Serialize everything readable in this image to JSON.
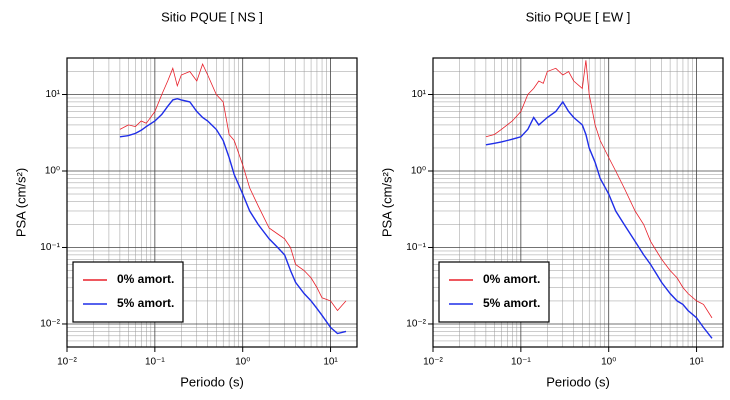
{
  "chart_data": [
    {
      "type": "line",
      "title": "Sitio PQUE [ NS ]",
      "x_label": "Periodo (s)",
      "y_label": "PSA (cm/s²)",
      "log_x": true,
      "log_y": true,
      "grid": true,
      "minor_grid": true,
      "legend": "lower left",
      "xlim": [
        0.01,
        20
      ],
      "ylim": [
        0.005,
        30
      ],
      "xticks": [
        {
          "value": 0.01,
          "label": "10⁻²"
        },
        {
          "value": 0.1,
          "label": "10⁻¹"
        },
        {
          "value": 1,
          "label": "10⁰"
        },
        {
          "value": 10,
          "label": "10¹"
        }
      ],
      "yticks": [
        {
          "value": 0.01,
          "label": "10⁻²"
        },
        {
          "value": 0.1,
          "label": "10⁻¹"
        },
        {
          "value": 1,
          "label": "10⁰"
        },
        {
          "value": 10,
          "label": "10¹"
        }
      ],
      "x": [
        0.04,
        0.05,
        0.06,
        0.07,
        0.08,
        0.1,
        0.12,
        0.14,
        0.16,
        0.18,
        0.2,
        0.25,
        0.3,
        0.35,
        0.4,
        0.5,
        0.6,
        0.7,
        0.8,
        1.0,
        1.2,
        1.5,
        2,
        2.5,
        3,
        3.5,
        4,
        5,
        6,
        7,
        8,
        10,
        12,
        15
      ],
      "series": [
        {
          "name": "0% amort.",
          "color": "#e8202a",
          "width": 0.8,
          "values": [
            3.5,
            4,
            3.8,
            4.5,
            4.2,
            6,
            10,
            15,
            22,
            13,
            18,
            20,
            15,
            25,
            18,
            10,
            8,
            3,
            2.5,
            1.2,
            0.6,
            0.35,
            0.18,
            0.15,
            0.13,
            0.1,
            0.06,
            0.05,
            0.04,
            0.03,
            0.022,
            0.02,
            0.015,
            0.02
          ]
        },
        {
          "name": "5% amort.",
          "color": "#1f2ee8",
          "width": 1.4,
          "values": [
            2.8,
            2.9,
            3.1,
            3.4,
            3.8,
            4.5,
            5.5,
            7,
            8.5,
            8.8,
            8.5,
            8,
            6,
            5,
            4.5,
            3.5,
            2.5,
            1.5,
            0.9,
            0.5,
            0.3,
            0.2,
            0.13,
            0.1,
            0.08,
            0.05,
            0.035,
            0.025,
            0.02,
            0.016,
            0.013,
            0.009,
            0.0075,
            0.008
          ]
        }
      ]
    },
    {
      "type": "line",
      "title": "Sitio PQUE [ EW ]",
      "x_label": "Periodo (s)",
      "y_label": "PSA (cm/s²)",
      "log_x": true,
      "log_y": true,
      "grid": true,
      "minor_grid": true,
      "legend": "lower left",
      "xlim": [
        0.01,
        20
      ],
      "ylim": [
        0.005,
        30
      ],
      "xticks": [
        {
          "value": 0.01,
          "label": "10⁻²"
        },
        {
          "value": 0.1,
          "label": "10⁻¹"
        },
        {
          "value": 1,
          "label": "10⁰"
        },
        {
          "value": 10,
          "label": "10¹"
        }
      ],
      "yticks": [
        {
          "value": 0.01,
          "label": "10⁻²"
        },
        {
          "value": 0.1,
          "label": "10⁻¹"
        },
        {
          "value": 1,
          "label": "10⁰"
        },
        {
          "value": 10,
          "label": "10¹"
        }
      ],
      "x": [
        0.04,
        0.05,
        0.06,
        0.07,
        0.08,
        0.1,
        0.12,
        0.14,
        0.16,
        0.18,
        0.2,
        0.25,
        0.3,
        0.35,
        0.4,
        0.5,
        0.55,
        0.6,
        0.7,
        0.8,
        1.0,
        1.2,
        1.5,
        2,
        2.5,
        3,
        3.5,
        4,
        5,
        6,
        7,
        8,
        10,
        12,
        15
      ],
      "series": [
        {
          "name": "0% amort.",
          "color": "#e8202a",
          "width": 0.8,
          "values": [
            2.8,
            3,
            3.5,
            4,
            4.5,
            6,
            10,
            12,
            15,
            14,
            20,
            22,
            18,
            20,
            15,
            12,
            28,
            10,
            4,
            2.5,
            1.5,
            1.0,
            0.6,
            0.3,
            0.2,
            0.12,
            0.09,
            0.07,
            0.05,
            0.04,
            0.03,
            0.025,
            0.02,
            0.018,
            0.012
          ]
        },
        {
          "name": "5% amort.",
          "color": "#1f2ee8",
          "width": 1.4,
          "values": [
            2.2,
            2.3,
            2.4,
            2.5,
            2.6,
            2.8,
            3.5,
            5,
            4,
            4.5,
            5,
            6,
            8,
            6,
            5,
            4,
            3,
            2,
            1.3,
            0.8,
            0.5,
            0.3,
            0.2,
            0.12,
            0.08,
            0.06,
            0.045,
            0.035,
            0.025,
            0.02,
            0.018,
            0.015,
            0.012,
            0.009,
            0.0065
          ]
        }
      ]
    }
  ]
}
